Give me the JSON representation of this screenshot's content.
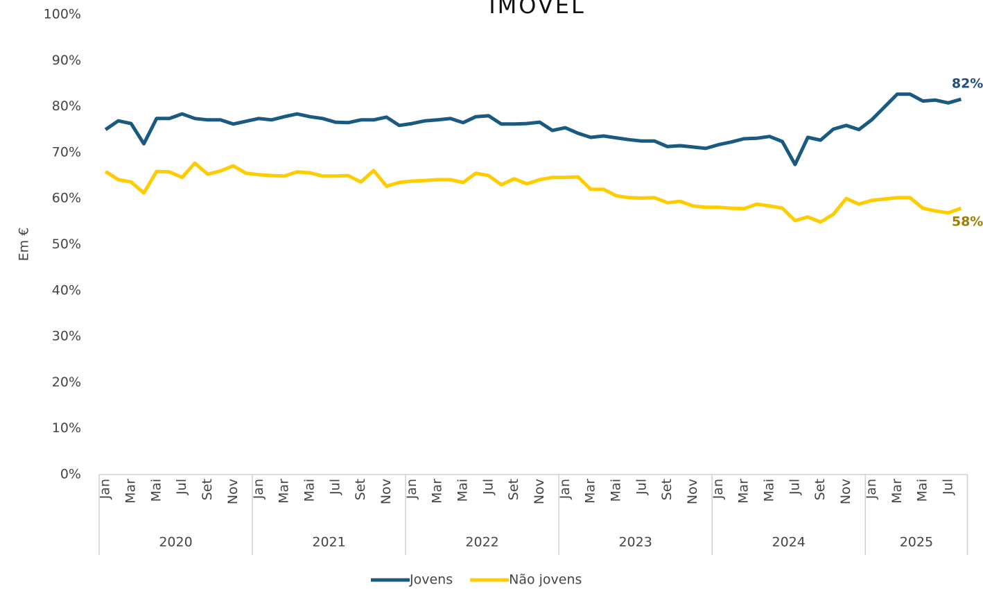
{
  "chart_data": {
    "type": "line",
    "title": "IMÓVEL",
    "y_label": "Em €",
    "categories": [
      "Jan",
      null,
      "Mar",
      null,
      "Mai",
      null,
      "Jul",
      null,
      "Set",
      null,
      "Nov",
      null,
      "Jan",
      null,
      "Mar",
      null,
      "Mai",
      null,
      "Jul",
      null,
      "Set",
      null,
      "Nov",
      null,
      "Jan",
      null,
      "Mar",
      null,
      "Mai",
      null,
      "Jul",
      null,
      "Set",
      null,
      "Nov",
      null,
      "Jan",
      null,
      "Mar",
      null,
      "Mai",
      null,
      "Jul",
      null,
      "Set",
      null,
      "Nov",
      null,
      "Jan",
      null,
      "Mar",
      null,
      "Mai",
      null,
      "Jul",
      null,
      "Set",
      null,
      "Nov",
      null,
      "Jan",
      null,
      "Mar",
      null,
      "Mai",
      null,
      "Jul",
      null
    ],
    "year_groups": [
      {
        "label": "2020",
        "months": 12
      },
      {
        "label": "2021",
        "months": 12
      },
      {
        "label": "2022",
        "months": 12
      },
      {
        "label": "2023",
        "months": 12
      },
      {
        "label": "2024",
        "months": 12
      },
      {
        "label": "2025",
        "months": 8
      }
    ],
    "series": [
      {
        "name": "Jovens",
        "color": "#1b5a80",
        "label_color": "#1f4e79",
        "values": [
          75.0,
          76.9,
          76.3,
          71.9,
          77.4,
          77.4,
          78.4,
          77.4,
          77.1,
          77.1,
          76.2,
          76.8,
          77.4,
          77.1,
          77.8,
          78.4,
          77.8,
          77.4,
          76.6,
          76.5,
          77.1,
          77.1,
          77.7,
          75.9,
          76.3,
          76.9,
          77.1,
          77.4,
          76.5,
          77.8,
          78.0,
          76.2,
          76.2,
          76.3,
          76.6,
          74.8,
          75.4,
          74.2,
          73.3,
          73.6,
          73.2,
          72.8,
          72.5,
          72.5,
          71.3,
          71.5,
          71.2,
          70.9,
          71.7,
          72.3,
          73.0,
          73.1,
          73.5,
          72.4,
          67.4,
          73.3,
          72.7,
          75.1,
          75.9,
          75.0,
          77.1,
          79.9,
          82.7,
          82.7,
          81.2,
          81.4,
          80.8,
          81.6
        ],
        "value_labels": [
          null,
          null,
          null,
          null,
          null,
          null,
          null,
          null,
          null,
          null,
          null,
          null,
          null,
          null,
          null,
          null,
          null,
          null,
          null,
          null,
          null,
          null,
          null,
          null,
          null,
          null,
          null,
          null,
          null,
          null,
          null,
          null,
          null,
          null,
          null,
          null,
          null,
          null,
          null,
          null,
          null,
          null,
          null,
          null,
          null,
          null,
          null,
          null,
          null,
          null,
          null,
          null,
          null,
          null,
          null,
          null,
          null,
          null,
          null,
          null,
          null,
          null,
          null,
          null,
          null,
          null,
          null,
          "82%"
        ]
      },
      {
        "name": "Não jovens",
        "color": "#ffcc00",
        "label_color": "#9c7f00",
        "values": [
          65.9,
          64.1,
          63.6,
          61.2,
          65.9,
          65.8,
          64.6,
          67.7,
          65.3,
          66.0,
          67.1,
          65.5,
          65.2,
          65.0,
          64.9,
          65.8,
          65.6,
          64.9,
          64.9,
          65.0,
          63.6,
          66.1,
          62.7,
          63.5,
          63.8,
          63.9,
          64.1,
          64.1,
          63.5,
          65.5,
          65.0,
          63.0,
          64.3,
          63.2,
          64.1,
          64.6,
          64.6,
          64.7,
          62.0,
          62.0,
          60.6,
          60.2,
          60.1,
          60.2,
          59.1,
          59.4,
          58.4,
          58.1,
          58.1,
          57.9,
          57.8,
          58.8,
          58.4,
          57.9,
          55.2,
          56.0,
          54.9,
          56.6,
          60.0,
          58.8,
          59.6,
          59.9,
          60.2,
          60.2,
          57.9,
          57.3,
          56.9,
          57.9
        ],
        "value_labels": [
          null,
          null,
          null,
          null,
          null,
          null,
          null,
          null,
          null,
          null,
          null,
          null,
          null,
          null,
          null,
          null,
          null,
          null,
          null,
          null,
          null,
          null,
          null,
          null,
          null,
          null,
          null,
          null,
          null,
          null,
          null,
          null,
          null,
          null,
          null,
          null,
          null,
          null,
          null,
          null,
          null,
          null,
          null,
          null,
          null,
          null,
          null,
          null,
          null,
          null,
          null,
          null,
          null,
          null,
          null,
          null,
          null,
          null,
          null,
          null,
          null,
          null,
          null,
          null,
          null,
          null,
          null,
          "58%"
        ]
      }
    ],
    "ylim": [
      0,
      100
    ],
    "yticks": [
      {
        "value": 0,
        "label": "0%"
      },
      {
        "value": 10,
        "label": "10%"
      },
      {
        "value": 20,
        "label": "20%"
      },
      {
        "value": 30,
        "label": "30%"
      },
      {
        "value": 40,
        "label": "40%"
      },
      {
        "value": 50,
        "label": "50%"
      },
      {
        "value": 60,
        "label": "60%"
      },
      {
        "value": 70,
        "label": "70%"
      },
      {
        "value": 80,
        "label": "80%"
      },
      {
        "value": 90,
        "label": "90%"
      },
      {
        "value": 100,
        "label": "100%"
      }
    ],
    "grid": false,
    "legend": "bottom"
  }
}
